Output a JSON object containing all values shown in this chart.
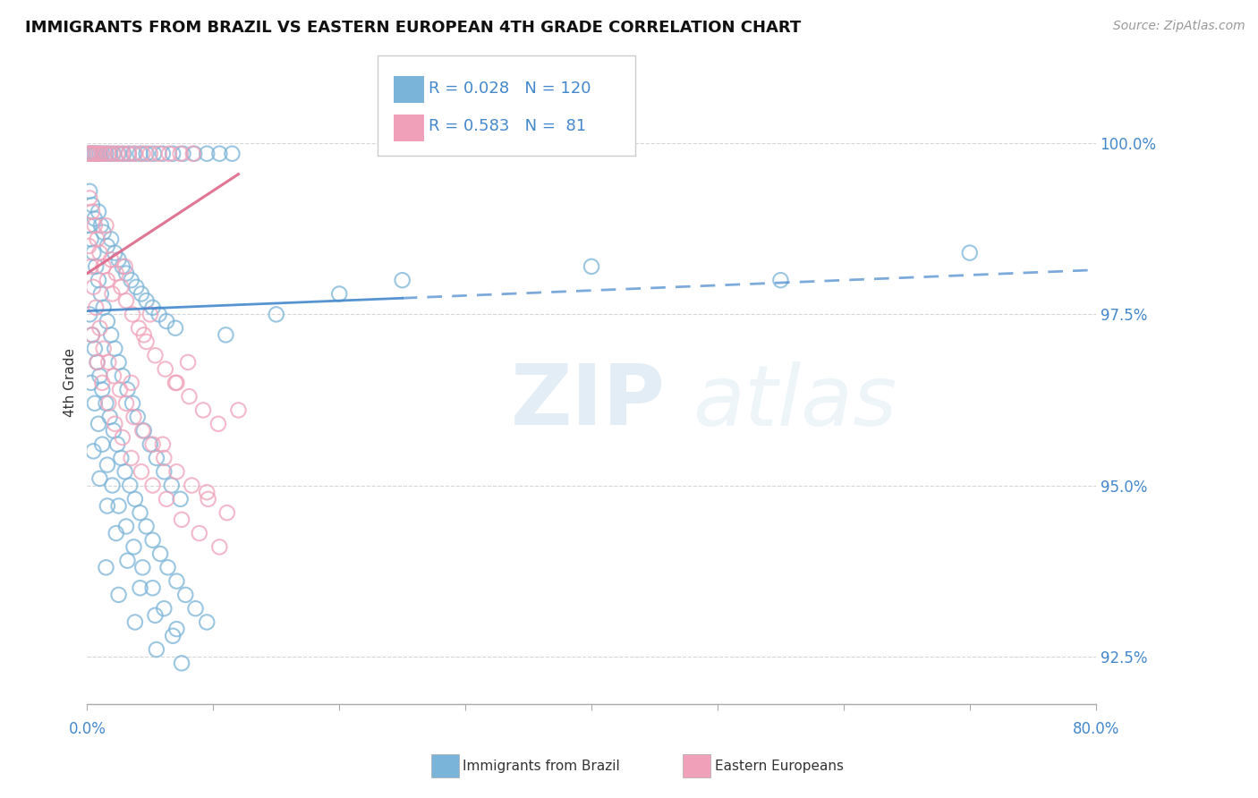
{
  "title": "IMMIGRANTS FROM BRAZIL VS EASTERN EUROPEAN 4TH GRADE CORRELATION CHART",
  "source": "Source: ZipAtlas.com",
  "ylabel": "4th Grade",
  "xlim": [
    0.0,
    80.0
  ],
  "ylim": [
    91.8,
    101.2
  ],
  "ytick_vals": [
    92.5,
    95.0,
    97.5,
    100.0
  ],
  "ytick_labs": [
    "92.5%",
    "95.0%",
    "97.5%",
    "100.0%"
  ],
  "r_brazil": 0.028,
  "n_brazil": 120,
  "r_eastern": 0.583,
  "n_eastern": 81,
  "color_brazil": "#7ab4d8",
  "color_eastern": "#f0a0b8",
  "trendline_brazil_color": "#4488cc",
  "trendline_eastern_color": "#dd6688",
  "brazil_trendline": [
    [
      0,
      97.55
    ],
    [
      25,
      97.75
    ],
    [
      80,
      98.15
    ]
  ],
  "eastern_trendline": [
    [
      0,
      98.0
    ],
    [
      12,
      99.5
    ]
  ],
  "brazil_solid_end": 25,
  "brazil_dashed_start": 25,
  "brazil_scatter": [
    [
      0.15,
      99.85
    ],
    [
      0.25,
      99.85
    ],
    [
      0.35,
      99.85
    ],
    [
      0.5,
      99.85
    ],
    [
      0.65,
      99.85
    ],
    [
      0.8,
      99.85
    ],
    [
      1.0,
      99.85
    ],
    [
      1.2,
      99.85
    ],
    [
      1.5,
      99.85
    ],
    [
      1.8,
      99.85
    ],
    [
      2.1,
      99.85
    ],
    [
      2.5,
      99.85
    ],
    [
      2.9,
      99.85
    ],
    [
      3.3,
      99.85
    ],
    [
      3.7,
      99.85
    ],
    [
      4.2,
      99.85
    ],
    [
      4.7,
      99.85
    ],
    [
      5.3,
      99.85
    ],
    [
      6.0,
      99.85
    ],
    [
      6.8,
      99.85
    ],
    [
      7.6,
      99.85
    ],
    [
      8.5,
      99.85
    ],
    [
      9.5,
      99.85
    ],
    [
      10.5,
      99.85
    ],
    [
      11.5,
      99.85
    ],
    [
      0.2,
      99.3
    ],
    [
      0.4,
      99.1
    ],
    [
      0.6,
      98.9
    ],
    [
      0.9,
      99.0
    ],
    [
      1.1,
      98.8
    ],
    [
      1.3,
      98.7
    ],
    [
      1.6,
      98.5
    ],
    [
      1.9,
      98.6
    ],
    [
      2.2,
      98.4
    ],
    [
      2.5,
      98.3
    ],
    [
      2.8,
      98.2
    ],
    [
      3.1,
      98.1
    ],
    [
      3.5,
      98.0
    ],
    [
      3.9,
      97.9
    ],
    [
      4.3,
      97.8
    ],
    [
      4.7,
      97.7
    ],
    [
      5.2,
      97.6
    ],
    [
      5.7,
      97.5
    ],
    [
      6.3,
      97.4
    ],
    [
      7.0,
      97.3
    ],
    [
      0.15,
      98.8
    ],
    [
      0.3,
      98.6
    ],
    [
      0.5,
      98.4
    ],
    [
      0.7,
      98.2
    ],
    [
      0.9,
      98.0
    ],
    [
      1.1,
      97.8
    ],
    [
      1.3,
      97.6
    ],
    [
      1.6,
      97.4
    ],
    [
      1.9,
      97.2
    ],
    [
      2.2,
      97.0
    ],
    [
      2.5,
      96.8
    ],
    [
      2.8,
      96.6
    ],
    [
      3.2,
      96.4
    ],
    [
      3.6,
      96.2
    ],
    [
      4.0,
      96.0
    ],
    [
      4.5,
      95.8
    ],
    [
      5.0,
      95.6
    ],
    [
      5.5,
      95.4
    ],
    [
      6.1,
      95.2
    ],
    [
      6.7,
      95.0
    ],
    [
      7.4,
      94.8
    ],
    [
      0.2,
      97.5
    ],
    [
      0.4,
      97.2
    ],
    [
      0.6,
      97.0
    ],
    [
      0.8,
      96.8
    ],
    [
      1.0,
      96.6
    ],
    [
      1.2,
      96.4
    ],
    [
      1.5,
      96.2
    ],
    [
      1.8,
      96.0
    ],
    [
      2.1,
      95.8
    ],
    [
      2.4,
      95.6
    ],
    [
      2.7,
      95.4
    ],
    [
      3.0,
      95.2
    ],
    [
      3.4,
      95.0
    ],
    [
      3.8,
      94.8
    ],
    [
      4.2,
      94.6
    ],
    [
      4.7,
      94.4
    ],
    [
      5.2,
      94.2
    ],
    [
      5.8,
      94.0
    ],
    [
      6.4,
      93.8
    ],
    [
      7.1,
      93.6
    ],
    [
      7.8,
      93.4
    ],
    [
      8.6,
      93.2
    ],
    [
      9.5,
      93.0
    ],
    [
      0.3,
      96.5
    ],
    [
      0.6,
      96.2
    ],
    [
      0.9,
      95.9
    ],
    [
      1.2,
      95.6
    ],
    [
      1.6,
      95.3
    ],
    [
      2.0,
      95.0
    ],
    [
      2.5,
      94.7
    ],
    [
      3.1,
      94.4
    ],
    [
      3.7,
      94.1
    ],
    [
      4.4,
      93.8
    ],
    [
      5.2,
      93.5
    ],
    [
      6.1,
      93.2
    ],
    [
      7.1,
      92.9
    ],
    [
      0.5,
      95.5
    ],
    [
      1.0,
      95.1
    ],
    [
      1.6,
      94.7
    ],
    [
      2.3,
      94.3
    ],
    [
      3.2,
      93.9
    ],
    [
      4.2,
      93.5
    ],
    [
      5.4,
      93.1
    ],
    [
      6.8,
      92.8
    ],
    [
      1.5,
      93.8
    ],
    [
      2.5,
      93.4
    ],
    [
      3.8,
      93.0
    ],
    [
      5.5,
      92.6
    ],
    [
      7.5,
      92.4
    ],
    [
      11.0,
      97.2
    ],
    [
      15.0,
      97.5
    ],
    [
      20.0,
      97.8
    ],
    [
      25.0,
      98.0
    ],
    [
      40.0,
      98.2
    ],
    [
      55.0,
      98.0
    ],
    [
      70.0,
      98.4
    ]
  ],
  "eastern_scatter": [
    [
      0.1,
      99.85
    ],
    [
      0.2,
      99.85
    ],
    [
      0.35,
      99.85
    ],
    [
      0.5,
      99.85
    ],
    [
      0.7,
      99.85
    ],
    [
      0.9,
      99.85
    ],
    [
      1.1,
      99.85
    ],
    [
      1.4,
      99.85
    ],
    [
      1.7,
      99.85
    ],
    [
      2.0,
      99.85
    ],
    [
      2.4,
      99.85
    ],
    [
      2.8,
      99.85
    ],
    [
      3.3,
      99.85
    ],
    [
      3.8,
      99.85
    ],
    [
      4.4,
      99.85
    ],
    [
      5.0,
      99.85
    ],
    [
      5.7,
      99.85
    ],
    [
      6.5,
      99.85
    ],
    [
      7.4,
      99.85
    ],
    [
      8.4,
      99.85
    ],
    [
      0.2,
      99.2
    ],
    [
      0.4,
      99.0
    ],
    [
      0.6,
      98.8
    ],
    [
      0.8,
      98.6
    ],
    [
      1.0,
      98.4
    ],
    [
      1.3,
      98.2
    ],
    [
      1.6,
      98.0
    ],
    [
      1.9,
      98.3
    ],
    [
      2.3,
      98.1
    ],
    [
      2.7,
      97.9
    ],
    [
      3.1,
      97.7
    ],
    [
      3.6,
      97.5
    ],
    [
      4.1,
      97.3
    ],
    [
      4.7,
      97.1
    ],
    [
      5.4,
      96.9
    ],
    [
      6.2,
      96.7
    ],
    [
      7.1,
      96.5
    ],
    [
      8.1,
      96.3
    ],
    [
      9.2,
      96.1
    ],
    [
      10.4,
      95.9
    ],
    [
      0.15,
      98.5
    ],
    [
      0.3,
      98.2
    ],
    [
      0.5,
      97.9
    ],
    [
      0.7,
      97.6
    ],
    [
      1.0,
      97.3
    ],
    [
      1.3,
      97.0
    ],
    [
      1.7,
      96.8
    ],
    [
      2.1,
      96.6
    ],
    [
      2.6,
      96.4
    ],
    [
      3.1,
      96.2
    ],
    [
      3.7,
      96.0
    ],
    [
      4.4,
      95.8
    ],
    [
      5.2,
      95.6
    ],
    [
      6.1,
      95.4
    ],
    [
      7.1,
      95.2
    ],
    [
      8.3,
      95.0
    ],
    [
      9.6,
      94.8
    ],
    [
      11.1,
      94.6
    ],
    [
      0.4,
      97.2
    ],
    [
      0.8,
      96.8
    ],
    [
      1.2,
      96.5
    ],
    [
      1.7,
      96.2
    ],
    [
      2.2,
      95.9
    ],
    [
      2.8,
      95.7
    ],
    [
      3.5,
      95.4
    ],
    [
      4.3,
      95.2
    ],
    [
      5.2,
      95.0
    ],
    [
      6.3,
      94.8
    ],
    [
      7.5,
      94.5
    ],
    [
      8.9,
      94.3
    ],
    [
      10.5,
      94.1
    ],
    [
      1.5,
      98.8
    ],
    [
      3.0,
      98.2
    ],
    [
      5.0,
      97.5
    ],
    [
      8.0,
      96.8
    ],
    [
      12.0,
      96.1
    ],
    [
      3.5,
      96.5
    ],
    [
      6.0,
      95.6
    ],
    [
      9.5,
      94.9
    ],
    [
      2.0,
      97.8
    ],
    [
      4.5,
      97.2
    ],
    [
      7.0,
      96.5
    ]
  ]
}
